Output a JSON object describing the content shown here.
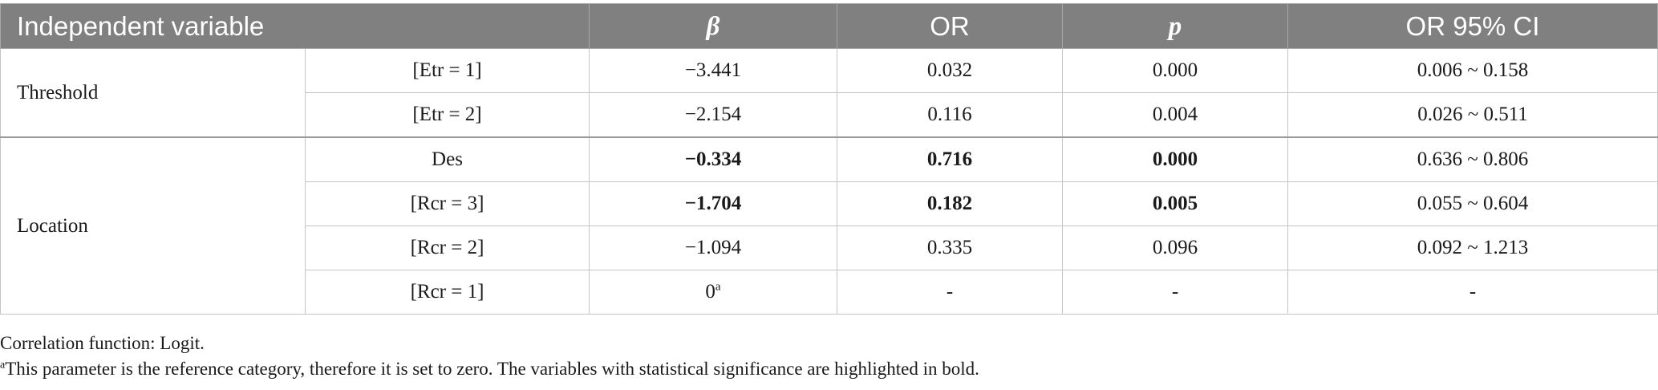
{
  "table": {
    "headers": {
      "independent_variable": "Independent variable",
      "beta": "β",
      "or": "OR",
      "p": "p",
      "ci": "OR 95% CI"
    },
    "groups": [
      {
        "label": "Threshold",
        "rows": [
          {
            "variable": "[Etr = 1]",
            "beta": "−3.441",
            "or": "0.032",
            "p": "0.000",
            "ci": "0.006 ~ 0.158",
            "bold": false
          },
          {
            "variable": "[Etr = 2]",
            "beta": "−2.154",
            "or": "0.116",
            "p": "0.004",
            "ci": "0.026 ~ 0.511",
            "bold": false
          }
        ]
      },
      {
        "label": "Location",
        "rows": [
          {
            "variable": "Des",
            "beta": "−0.334",
            "or": "0.716",
            "p": "0.000",
            "ci": "0.636 ~ 0.806",
            "bold": true
          },
          {
            "variable": "[Rcr = 3]",
            "beta": "−1.704",
            "or": "0.182",
            "p": "0.005",
            "ci": "0.055 ~ 0.604",
            "bold": true
          },
          {
            "variable": "[Rcr = 2]",
            "beta": "−1.094",
            "or": "0.335",
            "p": "0.096",
            "ci": "0.092 ~ 1.213",
            "bold": false
          },
          {
            "variable": "[Rcr = 1]",
            "beta": "0",
            "beta_sup": "a",
            "or": "-",
            "p": "-",
            "ci": "-",
            "bold": false
          }
        ]
      }
    ]
  },
  "notes": {
    "correlation": "Correlation function: Logit.",
    "footnote_marker": "a",
    "footnote": "This parameter is the reference category, therefore it is set to zero. The variables with statistical significance are highlighted in bold."
  }
}
